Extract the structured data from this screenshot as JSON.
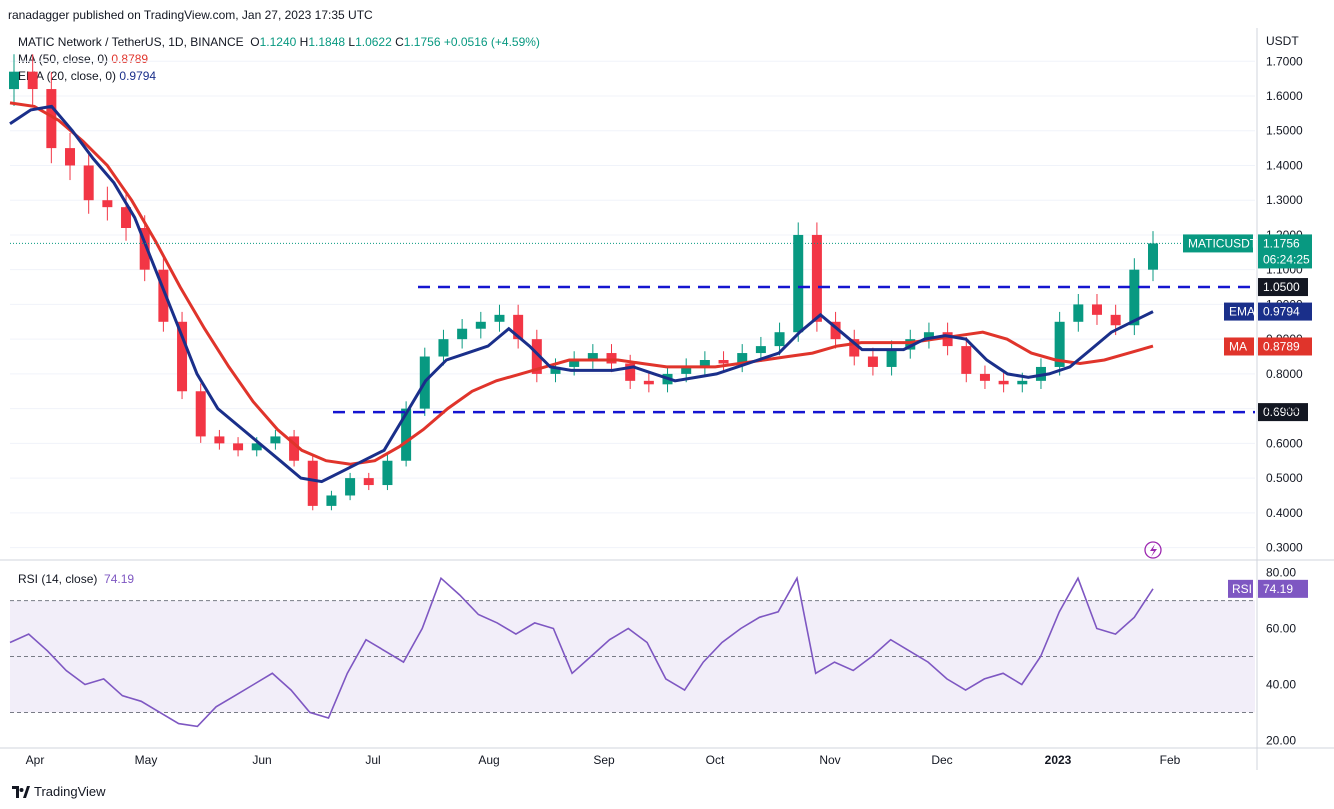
{
  "header": {
    "published": "ranadagger published on TradingView.com, Jan 27, 2023 17:35 UTC",
    "symbol": "MATIC Network / TetherUS, 1D, BINANCE",
    "o_label": "O",
    "o_val": "1.1240",
    "h_label": "H",
    "h_val": "1.1848",
    "l_label": "L",
    "l_val": "1.0622",
    "c_label": "C",
    "c_val": "1.1756",
    "change": "+0.0516 (+4.59%)",
    "ma_label": "MA (50, close, 0)",
    "ma_val": "0.8789",
    "ema_label": "EMA (20, close, 0)",
    "ema_val": "0.9794"
  },
  "rsi": {
    "label": "RSI (14, close)",
    "val": "74.19",
    "tag": "RSI"
  },
  "footer": {
    "brand": "TradingView"
  },
  "colors": {
    "up": "#089981",
    "down": "#f23645",
    "ma": "#e0342b",
    "ema": "#1a2f8a",
    "rsi": "#7e57c2",
    "level": "#1515d0"
  },
  "chart_data": {
    "type": "candlestick",
    "title": "MATIC Network / TetherUS, 1D, BINANCE",
    "currency": "USDT",
    "y_ticks": [
      "1.7000",
      "1.6000",
      "1.5000",
      "1.4000",
      "1.3000",
      "1.2000",
      "1.1000",
      "1.0000",
      "0.9000",
      "0.8000",
      "0.7000",
      "0.6000",
      "0.5000",
      "0.4000",
      "0.3000"
    ],
    "ylim": [
      0.27,
      1.79
    ],
    "x_labels": [
      "Apr",
      "May",
      "Jun",
      "Jul",
      "Aug",
      "Sep",
      "Oct",
      "Nov",
      "Dec",
      "2023",
      "Feb"
    ],
    "levels": [
      {
        "value": 1.05,
        "label": "1.0500"
      },
      {
        "value": 0.69,
        "label": "0.6900"
      }
    ],
    "tags": [
      {
        "name": "MATICUSDT",
        "label": "MATICUSDT",
        "value_label": "1.1756",
        "time_label": "06:24:25",
        "value": 1.1756
      },
      {
        "name": "EMA",
        "label": "EMA",
        "value_label": "0.9794",
        "value": 0.9794
      },
      {
        "name": "MA",
        "label": "MA",
        "value_label": "0.8789",
        "value": 0.8789
      }
    ],
    "closes": [
      1.67,
      1.62,
      1.45,
      1.4,
      1.3,
      1.28,
      1.22,
      1.1,
      0.95,
      0.75,
      0.62,
      0.6,
      0.58,
      0.6,
      0.62,
      0.55,
      0.42,
      0.45,
      0.5,
      0.48,
      0.55,
      0.7,
      0.85,
      0.9,
      0.93,
      0.95,
      0.97,
      0.9,
      0.8,
      0.82,
      0.84,
      0.86,
      0.83,
      0.78,
      0.77,
      0.8,
      0.82,
      0.84,
      0.83,
      0.86,
      0.88,
      0.92,
      1.2,
      0.95,
      0.9,
      0.85,
      0.82,
      0.87,
      0.9,
      0.92,
      0.88,
      0.8,
      0.78,
      0.77,
      0.78,
      0.82,
      0.95,
      1.0,
      0.97,
      0.94,
      1.1,
      1.1756
    ],
    "ma_values": [
      1.58,
      1.57,
      1.53,
      1.47,
      1.4,
      1.3,
      1.18,
      1.05,
      0.93,
      0.82,
      0.72,
      0.64,
      0.58,
      0.55,
      0.54,
      0.55,
      0.59,
      0.64,
      0.7,
      0.75,
      0.78,
      0.8,
      0.82,
      0.84,
      0.84,
      0.84,
      0.83,
      0.82,
      0.82,
      0.82,
      0.83,
      0.84,
      0.85,
      0.86,
      0.88,
      0.89,
      0.89,
      0.89,
      0.9,
      0.91,
      0.92,
      0.9,
      0.86,
      0.84,
      0.83,
      0.84,
      0.86,
      0.88
    ],
    "ema_values": [
      1.52,
      1.56,
      1.57,
      1.5,
      1.42,
      1.35,
      1.25,
      1.1,
      0.95,
      0.8,
      0.7,
      0.65,
      0.6,
      0.55,
      0.5,
      0.49,
      0.52,
      0.55,
      0.58,
      0.68,
      0.78,
      0.84,
      0.86,
      0.88,
      0.93,
      0.88,
      0.82,
      0.81,
      0.81,
      0.81,
      0.82,
      0.8,
      0.78,
      0.79,
      0.8,
      0.82,
      0.84,
      0.86,
      0.92,
      0.97,
      0.92,
      0.87,
      0.87,
      0.87,
      0.9,
      0.91,
      0.9,
      0.84,
      0.8,
      0.79,
      0.8,
      0.82,
      0.87,
      0.92,
      0.95,
      0.9794
    ],
    "rsi": {
      "y_ticks": [
        "80.00",
        "60.00",
        "40.00",
        "20.00"
      ],
      "ylim": [
        18,
        82
      ],
      "band": [
        30,
        70
      ],
      "mid": 50,
      "values": [
        55,
        58,
        52,
        45,
        40,
        42,
        36,
        34,
        30,
        26,
        25,
        32,
        36,
        40,
        44,
        38,
        30,
        28,
        44,
        56,
        52,
        48,
        60,
        78,
        72,
        65,
        62,
        58,
        62,
        60,
        44,
        50,
        56,
        60,
        55,
        42,
        38,
        48,
        55,
        60,
        64,
        66,
        78,
        44,
        48,
        45,
        50,
        56,
        52,
        48,
        42,
        38,
        42,
        44,
        40,
        50,
        66,
        78,
        60,
        58,
        64,
        74.19
      ]
    }
  }
}
